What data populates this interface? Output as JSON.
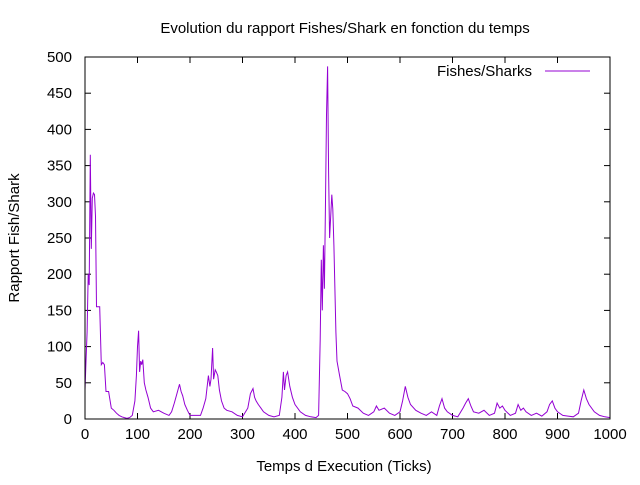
{
  "colors": {
    "series": "#9400D3",
    "axis": "#000000",
    "background": "#ffffff"
  },
  "chart_data": {
    "type": "line",
    "title": "Evolution du rapport Fishes/Shark en fonction du temps",
    "xlabel": "Temps d Execution (Ticks)",
    "ylabel": "Rapport Fish/Shark",
    "xlim": [
      0,
      1000
    ],
    "ylim": [
      0,
      500
    ],
    "xticks": [
      0,
      100,
      200,
      300,
      400,
      500,
      600,
      700,
      800,
      900,
      1000
    ],
    "yticks": [
      0,
      50,
      100,
      150,
      200,
      250,
      300,
      350,
      400,
      450,
      500
    ],
    "grid": false,
    "legend_position": "top-right",
    "series": [
      {
        "name": "Fishes/Sharks",
        "x": [
          0,
          2,
          4,
          6,
          8,
          10,
          12,
          14,
          16,
          18,
          20,
          22,
          25,
          28,
          31,
          34,
          37,
          40,
          45,
          50,
          55,
          60,
          65,
          70,
          75,
          80,
          85,
          90,
          95,
          98,
          100,
          102,
          104,
          106,
          108,
          110,
          113,
          116,
          120,
          125,
          130,
          140,
          150,
          160,
          165,
          170,
          175,
          180,
          183,
          186,
          190,
          195,
          200,
          210,
          220,
          225,
          230,
          235,
          238,
          240,
          243,
          245,
          248,
          250,
          253,
          256,
          260,
          265,
          270,
          280,
          290,
          300,
          310,
          315,
          320,
          323,
          326,
          330,
          335,
          340,
          350,
          360,
          370,
          375,
          378,
          380,
          383,
          386,
          390,
          395,
          400,
          410,
          420,
          430,
          440,
          445,
          448,
          450,
          452,
          454,
          456,
          458,
          460,
          462,
          464,
          466,
          468,
          470,
          472,
          474,
          476,
          478,
          480,
          485,
          490,
          495,
          500,
          505,
          510,
          520,
          530,
          540,
          550,
          555,
          560,
          570,
          580,
          590,
          600,
          605,
          610,
          615,
          620,
          630,
          640,
          650,
          660,
          670,
          675,
          680,
          685,
          690,
          700,
          710,
          720,
          725,
          730,
          735,
          740,
          750,
          760,
          770,
          780,
          785,
          790,
          795,
          800,
          810,
          820,
          825,
          830,
          835,
          840,
          850,
          860,
          870,
          880,
          885,
          890,
          895,
          900,
          910,
          920,
          930,
          940,
          945,
          950,
          955,
          960,
          970,
          980,
          990,
          1000
        ],
        "y": [
          40,
          80,
          120,
          200,
          185,
          365,
          235,
          305,
          312,
          310,
          280,
          155,
          155,
          155,
          75,
          78,
          75,
          38,
          38,
          15,
          12,
          8,
          5,
          3,
          2,
          1,
          2,
          5,
          25,
          60,
          100,
          122,
          65,
          80,
          75,
          82,
          50,
          40,
          30,
          15,
          10,
          12,
          8,
          5,
          10,
          22,
          35,
          48,
          38,
          32,
          20,
          12,
          5,
          5,
          5,
          15,
          28,
          60,
          45,
          55,
          98,
          55,
          68,
          65,
          60,
          40,
          25,
          15,
          12,
          10,
          5,
          3,
          15,
          35,
          42,
          30,
          25,
          20,
          15,
          10,
          5,
          3,
          5,
          30,
          65,
          40,
          60,
          65,
          45,
          30,
          20,
          10,
          5,
          3,
          2,
          5,
          110,
          220,
          150,
          240,
          180,
          300,
          420,
          487,
          340,
          250,
          280,
          310,
          290,
          240,
          180,
          120,
          80,
          60,
          40,
          38,
          35,
          28,
          18,
          15,
          8,
          5,
          10,
          18,
          12,
          15,
          8,
          5,
          10,
          25,
          45,
          30,
          20,
          12,
          8,
          5,
          10,
          5,
          18,
          28,
          15,
          10,
          5,
          3,
          15,
          22,
          28,
          18,
          10,
          8,
          12,
          5,
          8,
          22,
          15,
          18,
          12,
          5,
          8,
          20,
          12,
          15,
          10,
          5,
          8,
          4,
          10,
          20,
          25,
          15,
          10,
          5,
          4,
          3,
          8,
          25,
          40,
          28,
          20,
          10,
          5,
          3,
          2
        ]
      }
    ]
  }
}
